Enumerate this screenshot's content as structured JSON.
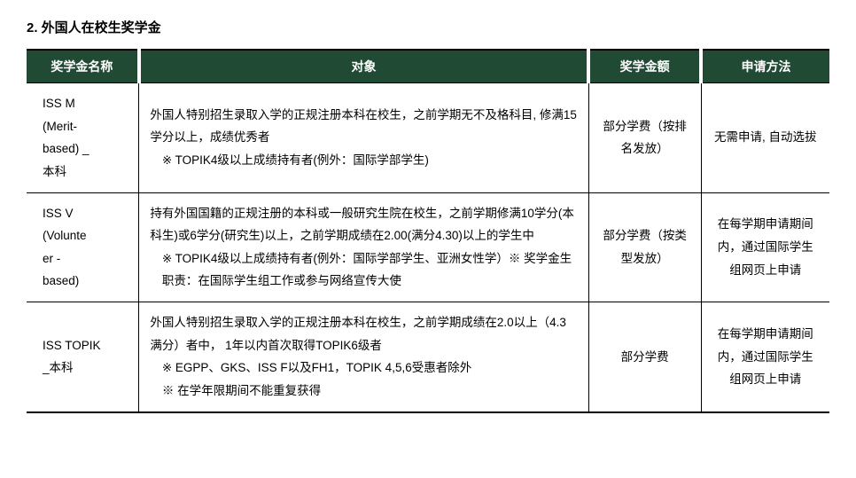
{
  "section_title": "2. 外国人在校生奖学金",
  "headers": {
    "name": "奖学金名称",
    "target": "对象",
    "amount": "奖学金额",
    "apply": "申请方法"
  },
  "rows": [
    {
      "name_l1": "ISS M",
      "name_l2": "(Merit-",
      "name_l3": "based) _",
      "name_l4": "本科",
      "target_l1": "外国人特别招生录取入学的正规注册本科在校生，之前学期无不及格科目, 修满15学分以上，成绩优秀者",
      "target_l2": "※ TOPIK4级以上成绩持有者(例外：国际学部学生)",
      "amount": "部分学费（按排名发放）",
      "apply": "无需申请, 自动选拔"
    },
    {
      "name_l1": "ISS V",
      "name_l2": "(Volunte",
      "name_l3": "er -",
      "name_l4": "based)",
      "target_l1": "持有外国国籍的正规注册的本科或一般研究生院在校生，之前学期修满10学分(本科生)或6学分(研究生)以上，之前学期成绩在2.00(满分4.30)以上的学生中",
      "target_l2": "※ TOPIK4级以上成绩持有者(例外：国际学部学生、亚洲女性学）※ 奖学金生职责：在国际学生组工作或参与网络宣传大使",
      "amount": "部分学费（按类型发放）",
      "apply": "在每学期申请期间内，通过国际学生组网页上申请"
    },
    {
      "name_l1": "ISS TOPIK",
      "name_l2": "_本科",
      "name_l3": "",
      "name_l4": "",
      "target_l1": "外国人特别招生录取入学的正规注册本科在校生，之前学期成绩在2.0以上（4.3满分）者中， 1年以内首次取得TOPIK6级者",
      "target_l2": "※ EGPP、GKS、ISS F以及FH1，TOPIK 4,5,6受惠者除外",
      "target_l3": "※ 在学年限期间不能重复获得",
      "amount": "部分学费",
      "apply": "在每学期申请期间内，通过国际学生组网页上申请"
    }
  ]
}
